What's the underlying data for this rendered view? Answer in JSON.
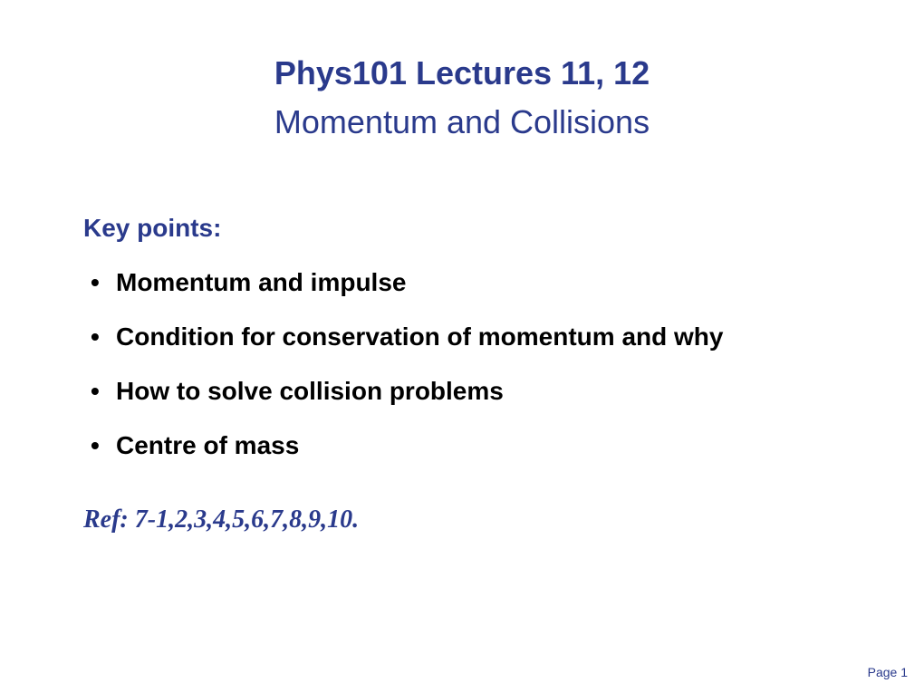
{
  "header": {
    "title": "Phys101 Lectures 11, 12",
    "subtitle": "Momentum and Collisions"
  },
  "key_points": {
    "heading": "Key points:",
    "items": [
      "Momentum and impulse",
      "Condition for conservation of momentum and why",
      "How to solve collision problems",
      "Centre of mass"
    ]
  },
  "reference": "Ref: 7-1,2,3,4,5,6,7,8,9,10.",
  "page_number": "Page 1",
  "colors": {
    "heading_color": "#2a3a8c",
    "body_text_color": "#000000",
    "background_color": "#ffffff"
  },
  "typography": {
    "title_fontsize": 36,
    "body_fontsize": 28,
    "page_number_fontsize": 14,
    "main_font": "Arial",
    "reference_font": "Times New Roman"
  }
}
